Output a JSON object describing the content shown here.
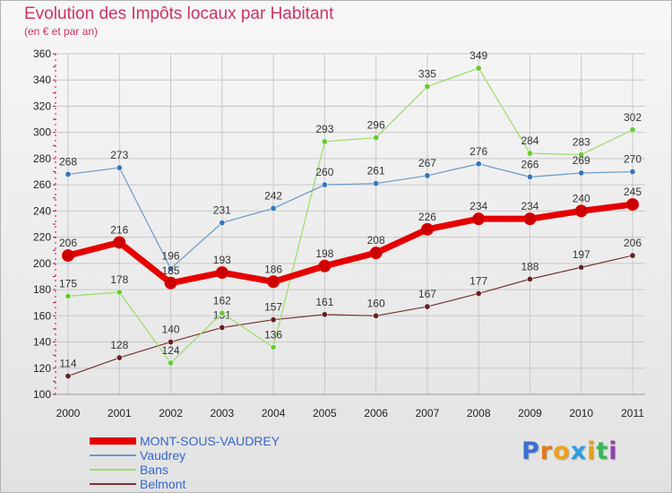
{
  "title": "Evolution des Impôts locaux par Habitant",
  "subtitle": "(en € et par an)",
  "colors": {
    "title": "#cc3366",
    "grid": "#c8c8c8",
    "axis": "#cc0033"
  },
  "logo": {
    "text": "Proxiti",
    "letters": [
      "P",
      "r",
      "o",
      "x",
      "i",
      "t",
      "i"
    ],
    "colors": [
      "#3b6fd1",
      "#e07a1c",
      "#f0a020",
      "#2a9ee0",
      "#e0a020",
      "#3cb85a",
      "#8e44ad"
    ]
  },
  "chart_data": {
    "type": "line",
    "title": "Evolution des Impôts locaux par Habitant",
    "subtitle": "(en € et par an)",
    "xlabel": "",
    "ylabel": "",
    "ylim": [
      100,
      360
    ],
    "ytick_step": 20,
    "grid": true,
    "legend_position": "bottom-left",
    "categories": [
      "2000",
      "2001",
      "2002",
      "2003",
      "2004",
      "2005",
      "2006",
      "2007",
      "2008",
      "2009",
      "2010",
      "2011"
    ],
    "series": [
      {
        "name": "MONT-SOUS-VAUDREY",
        "color": "#e60000",
        "marker_color": "#cc0000",
        "width": 7,
        "values": [
          206,
          216,
          185,
          193,
          186,
          198,
          208,
          226,
          234,
          234,
          240,
          245
        ]
      },
      {
        "name": "Vaudrey",
        "color": "#6699cc",
        "marker_color": "#3377bb",
        "width": 1.2,
        "values": [
          268,
          273,
          196,
          231,
          242,
          260,
          261,
          267,
          276,
          266,
          269,
          270
        ]
      },
      {
        "name": "Bans",
        "color": "#99dd66",
        "marker_color": "#66cc33",
        "width": 1.2,
        "values": [
          175,
          178,
          124,
          162,
          136,
          293,
          296,
          335,
          349,
          284,
          283,
          302
        ]
      },
      {
        "name": "Belmont",
        "color": "#773333",
        "marker_color": "#662222",
        "width": 1.2,
        "values": [
          114,
          128,
          140,
          151,
          157,
          161,
          160,
          167,
          177,
          188,
          197,
          206
        ]
      }
    ]
  }
}
